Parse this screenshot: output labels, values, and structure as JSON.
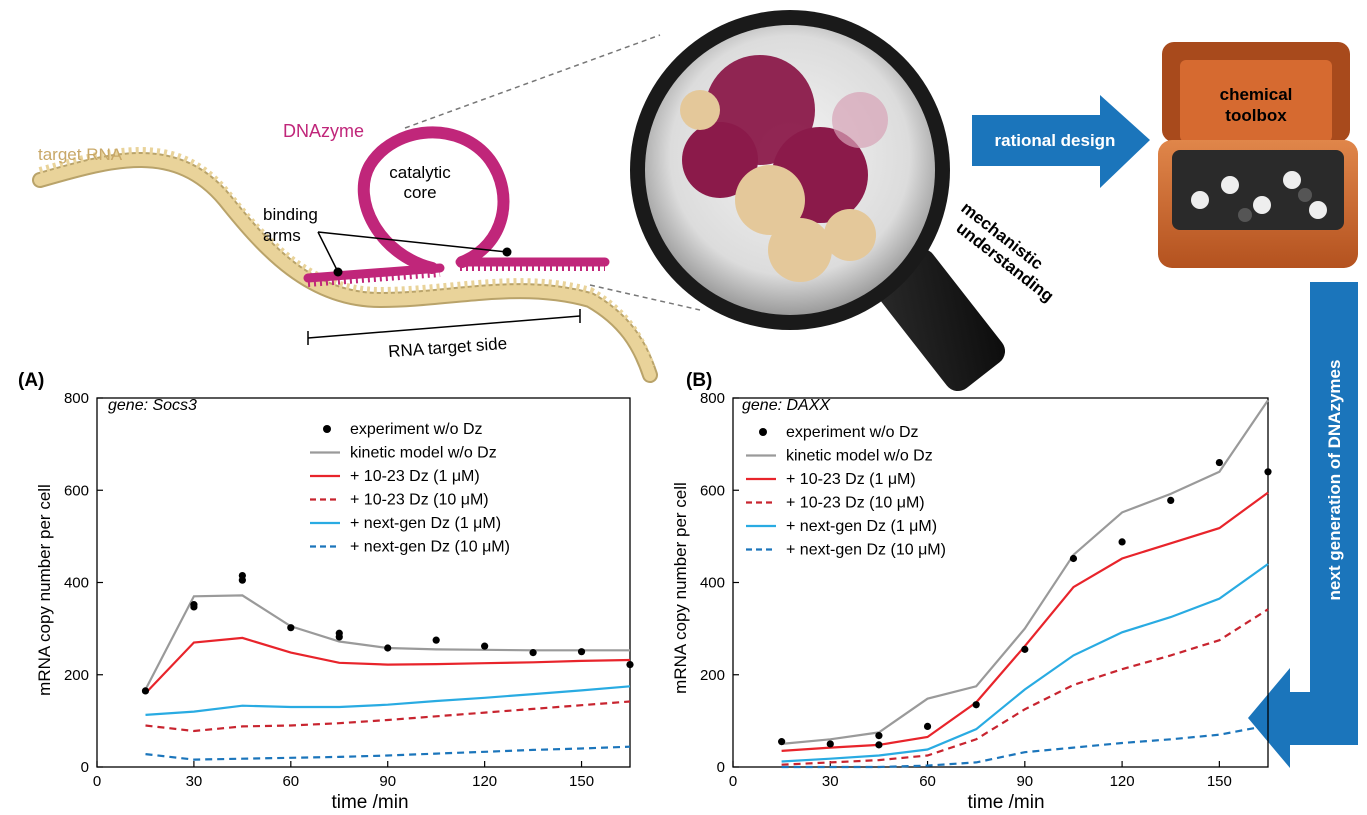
{
  "illustration": {
    "target_rna_label": "target RNA",
    "dnazyme_label": "DNAzyme",
    "catalytic_core_line1": "catalytic",
    "catalytic_core_line2": "core",
    "binding_arms_line1": "binding",
    "binding_arms_line2": "arms",
    "rna_target_side_label": "RNA target side",
    "mechanistic_line1": "mechanistic",
    "mechanistic_line2": "understanding",
    "rational_design_label": "rational design",
    "toolbox_line1": "chemical",
    "toolbox_line2": "toolbox",
    "next_generation_label": "next generation of DNAzymes",
    "colors": {
      "rna": "#e9d39a",
      "dnazyme": "#c0267a",
      "arrow_blue": "#1b75bb",
      "protein_red": "#8b1a4a",
      "toolbox": "#c8622c"
    }
  },
  "chart_data": [
    {
      "type": "line",
      "panel_label": "(A)",
      "annotation": "gene: Socs3",
      "xlabel": "time /min",
      "ylabel": "mRNA copy number per cell",
      "xlim": [
        0,
        165
      ],
      "ylim": [
        0,
        800
      ],
      "xticks": [
        0,
        30,
        60,
        90,
        120,
        150
      ],
      "yticks": [
        0,
        200,
        400,
        600,
        800
      ],
      "legend_position": "upper-right",
      "experiment": {
        "name": "experiment w/o Dz",
        "x": [
          15,
          30,
          30,
          45,
          45,
          60,
          75,
          75,
          90,
          105,
          120,
          135,
          150,
          165
        ],
        "y": [
          165,
          347,
          352,
          405,
          415,
          302,
          282,
          290,
          258,
          275,
          262,
          248,
          250,
          222
        ]
      },
      "series": [
        {
          "name": "kinetic model w/o Dz",
          "color": "#9a9a9a",
          "dash": "solid",
          "x": [
            15,
            30,
            45,
            60,
            75,
            90,
            105,
            120,
            135,
            150,
            165
          ],
          "y": [
            168,
            370,
            372,
            305,
            272,
            258,
            255,
            254,
            253,
            253,
            253
          ]
        },
        {
          "name": "+ 10-23 Dz (1 μM)",
          "color": "#e8242b",
          "dash": "solid",
          "x": [
            15,
            30,
            45,
            60,
            75,
            90,
            105,
            120,
            135,
            150,
            165
          ],
          "y": [
            160,
            270,
            280,
            248,
            226,
            222,
            223,
            225,
            227,
            230,
            232
          ]
        },
        {
          "name": "+ 10-23 Dz (10 μM)",
          "color": "#c8242f",
          "dash": "dashed",
          "x": [
            15,
            30,
            45,
            60,
            75,
            90,
            105,
            120,
            135,
            150,
            165
          ],
          "y": [
            90,
            78,
            88,
            90,
            95,
            102,
            110,
            118,
            126,
            134,
            142
          ]
        },
        {
          "name": "+ next-gen Dz (1 μM)",
          "color": "#29abe2",
          "dash": "solid",
          "x": [
            15,
            30,
            45,
            60,
            75,
            90,
            105,
            120,
            135,
            150,
            165
          ],
          "y": [
            113,
            120,
            133,
            130,
            130,
            135,
            143,
            150,
            158,
            166,
            175
          ]
        },
        {
          "name": "+ next-gen Dz (10 μM)",
          "color": "#1b75bb",
          "dash": "dashed",
          "x": [
            15,
            30,
            45,
            60,
            75,
            90,
            105,
            120,
            135,
            150,
            165
          ],
          "y": [
            28,
            16,
            18,
            20,
            22,
            25,
            29,
            33,
            37,
            40,
            44
          ]
        }
      ]
    },
    {
      "type": "line",
      "panel_label": "(B)",
      "annotation": "gene: DAXX",
      "xlabel": "time /min",
      "ylabel": "mRNA copy number per cell",
      "xlim": [
        0,
        165
      ],
      "ylim": [
        0,
        800
      ],
      "xticks": [
        0,
        30,
        60,
        90,
        120,
        150
      ],
      "yticks": [
        0,
        200,
        400,
        600,
        800
      ],
      "legend_position": "upper-left",
      "experiment": {
        "name": "experiment w/o Dz",
        "x": [
          15,
          30,
          45,
          45,
          60,
          75,
          90,
          105,
          120,
          135,
          150,
          165
        ],
        "y": [
          55,
          50,
          48,
          68,
          88,
          135,
          255,
          452,
          488,
          578,
          660,
          640
        ]
      },
      "series": [
        {
          "name": "kinetic model w/o Dz",
          "color": "#9a9a9a",
          "dash": "solid",
          "x": [
            15,
            30,
            45,
            60,
            75,
            90,
            105,
            120,
            135,
            150,
            165
          ],
          "y": [
            50,
            60,
            75,
            148,
            175,
            300,
            460,
            552,
            592,
            640,
            795
          ]
        },
        {
          "name": "+ 10-23 Dz (1 μM)",
          "color": "#e8242b",
          "dash": "solid",
          "x": [
            15,
            30,
            45,
            60,
            75,
            90,
            105,
            120,
            135,
            150,
            165
          ],
          "y": [
            35,
            42,
            48,
            65,
            140,
            262,
            390,
            452,
            485,
            518,
            595
          ]
        },
        {
          "name": "+ 10-23 Dz (10 μM)",
          "color": "#c8242f",
          "dash": "dashed",
          "x": [
            15,
            30,
            45,
            60,
            75,
            90,
            105,
            120,
            135,
            150,
            165
          ],
          "y": [
            5,
            10,
            15,
            25,
            60,
            125,
            178,
            212,
            242,
            275,
            342
          ]
        },
        {
          "name": "+ next-gen Dz (1 μM)",
          "color": "#29abe2",
          "dash": "solid",
          "x": [
            15,
            30,
            45,
            60,
            75,
            90,
            105,
            120,
            135,
            150,
            165
          ],
          "y": [
            12,
            18,
            25,
            38,
            82,
            168,
            242,
            292,
            325,
            365,
            440
          ]
        },
        {
          "name": "+ next-gen Dz (10 μM)",
          "color": "#1b75bb",
          "dash": "dashed",
          "x": [
            15,
            30,
            45,
            60,
            75,
            90,
            105,
            120,
            135,
            150,
            165
          ],
          "y": [
            0,
            0,
            0,
            3,
            10,
            32,
            42,
            52,
            60,
            70,
            90
          ]
        }
      ]
    }
  ]
}
